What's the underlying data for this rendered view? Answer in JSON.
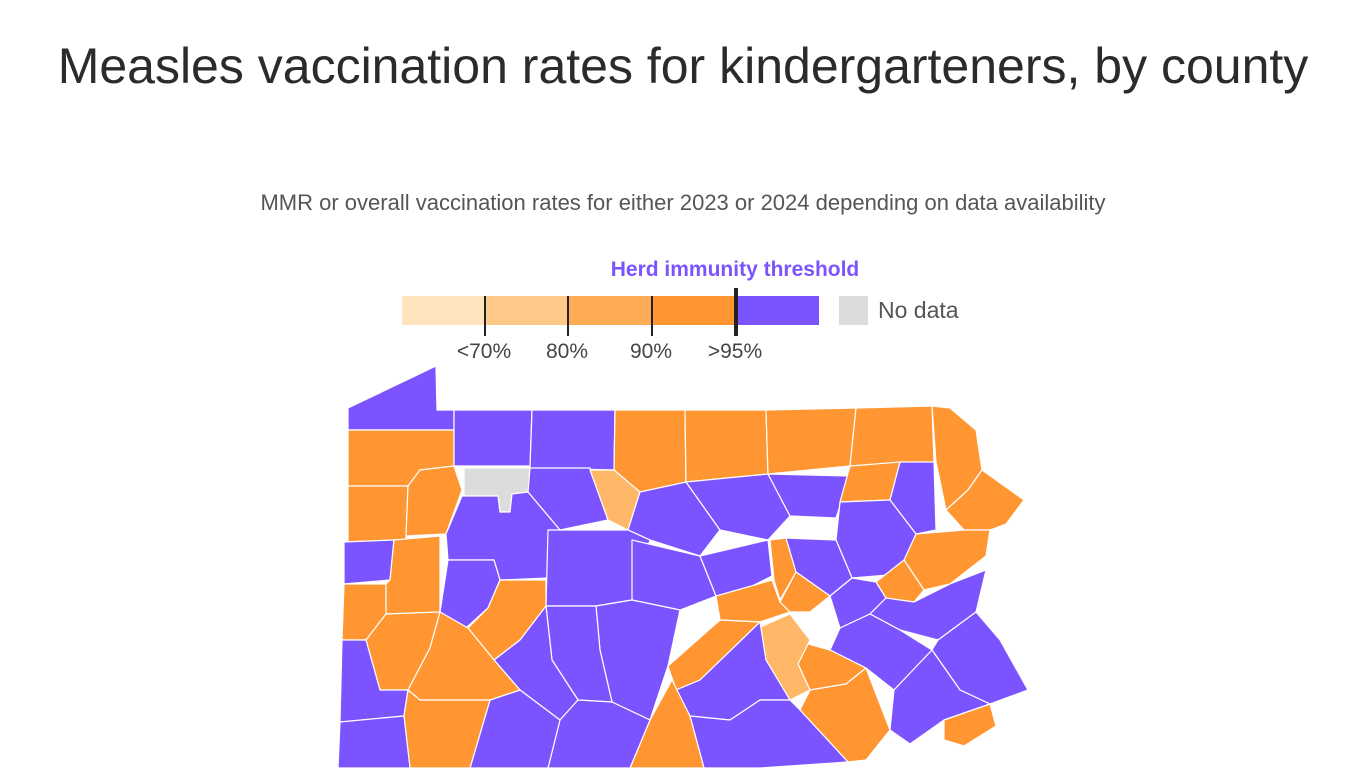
{
  "title": "Measles vaccination rates for kindergarteners, by county",
  "subtitle": "MMR or overall vaccination rates for either 2023 or 2024 depending on data availability",
  "legend": {
    "threshold_label": "Herd immunity threshold",
    "bins": [
      {
        "range": "<70%",
        "color": "#ffe3bd"
      },
      {
        "range": "70–80%",
        "color": "#ffc98a"
      },
      {
        "range": "80–90%",
        "color": "#ffaa55"
      },
      {
        "range": "90–95%",
        "color": "#ff9632"
      },
      {
        "range": ">95%",
        "color": "#7c54ff"
      }
    ],
    "tick_labels": [
      "<70%",
      "80%",
      "90%",
      ">95%"
    ],
    "no_data_label": "No data",
    "no_data_color": "#dcdcdc"
  },
  "colors": {
    "purple": "#7c54ff",
    "orange": "#ff9632",
    "light_orange": "#ffb768",
    "no_data": "#dcdcdc",
    "border": "#ffffff"
  }
}
